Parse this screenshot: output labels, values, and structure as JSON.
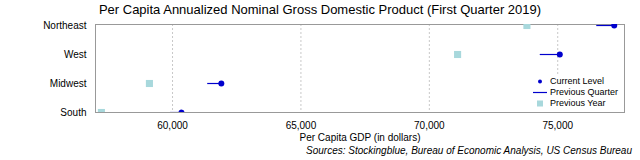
{
  "chart_data": {
    "type": "dot",
    "title": "Per Capita Annualized Nominal Gross Domestic Product (First Quarter 2019)",
    "caption": "Sources: Stockingblue, Bureau of Economic Analysis, US Census Bureau",
    "x_label": "Per Capita GDP (in dollars)",
    "orientation": "horizontal",
    "categories": [
      "Northeast",
      "West",
      "Midwest",
      "South"
    ],
    "series": [
      {
        "name": "Current Level",
        "color": "#0000cd",
        "marker": "circle",
        "values": [
          77200,
          75080,
          61900,
          60350
        ]
      },
      {
        "name": "Previous Quarter",
        "color": "#0000cd",
        "marker": "line",
        "values": [
          76500,
          74300,
          61350,
          59900
        ]
      },
      {
        "name": "Previous Year",
        "color": "#a8d8dc",
        "marker": "square",
        "values": [
          73800,
          71100,
          59100,
          57230
        ]
      }
    ],
    "xlim": [
      57000,
      77600
    ],
    "xticks": [
      {
        "value": 60000,
        "label": "60,000"
      },
      {
        "value": 65000,
        "label": "65,000"
      },
      {
        "value": 70000,
        "label": "70,000"
      },
      {
        "value": 75000,
        "label": "75,000"
      }
    ],
    "grid": true,
    "legend": "lower right"
  }
}
